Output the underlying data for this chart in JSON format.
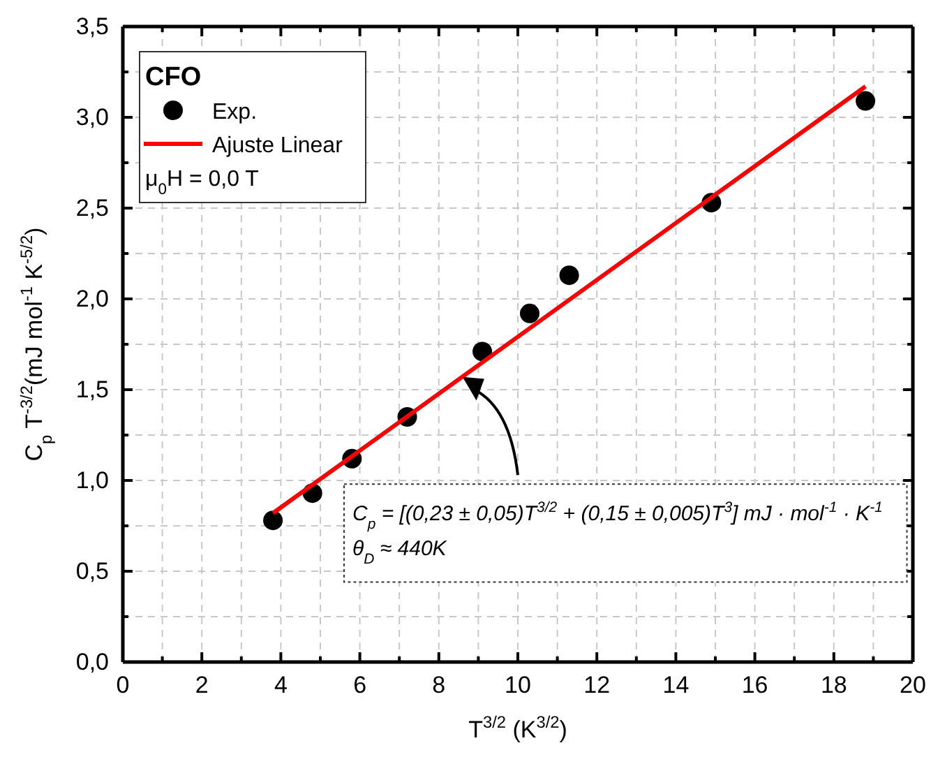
{
  "chart_data": {
    "type": "scatter",
    "xlabel": "T$^{3/2}$ (K$^{3/2}$)",
    "ylabel": "C$_{p}$ T$^{-3/2}$(mJ mol$^{-1}$ K$^{-5/2}$)",
    "legend_title": "CFO",
    "legend": "top left",
    "grid": true,
    "xlim": [
      0,
      20
    ],
    "ylim": [
      0,
      3.5
    ],
    "xticks": [
      0,
      {
        "value": 1,
        "label": null
      },
      2,
      {
        "value": 3,
        "label": null
      },
      4,
      {
        "value": 5,
        "label": null
      },
      6,
      {
        "value": 7,
        "label": null
      },
      8,
      {
        "value": 9,
        "label": null
      },
      10,
      {
        "value": 11,
        "label": null
      },
      12,
      {
        "value": 13,
        "label": null
      },
      14,
      {
        "value": 15,
        "label": null
      },
      16,
      {
        "value": 17,
        "label": null
      },
      18,
      {
        "value": 19,
        "label": null
      },
      20
    ],
    "yticks": [
      {
        "value": 0,
        "label": "0,0"
      },
      {
        "value": 0.25,
        "label": null
      },
      {
        "value": 0.5,
        "label": "0,5"
      },
      {
        "value": 0.75,
        "label": null
      },
      {
        "value": 1,
        "label": "1,0"
      },
      {
        "value": 1.25,
        "label": null
      },
      {
        "value": 1.5,
        "label": "1,5"
      },
      {
        "value": 1.75,
        "label": null
      },
      {
        "value": 2,
        "label": "2,0"
      },
      {
        "value": 2.25,
        "label": null
      },
      {
        "value": 2.5,
        "label": "2,5"
      },
      {
        "value": 2.75,
        "label": null
      },
      {
        "value": 3,
        "label": "3,0"
      },
      {
        "value": 3.25,
        "label": null
      },
      {
        "value": 3.5,
        "label": "3,5"
      }
    ],
    "series": [
      {
        "name": "Exp.",
        "marker": "circle",
        "color": "#000000",
        "x": [
          3.8,
          4.8,
          5.8,
          7.2,
          9.1,
          10.3,
          11.3,
          14.9,
          18.8
        ],
        "values": [
          0.78,
          0.93,
          1.12,
          1.35,
          1.71,
          1.92,
          2.13,
          2.53,
          3.09
        ]
      },
      {
        "name": "Ajuste Linear",
        "type": "line",
        "line_style": "solid",
        "color": "#ff0000",
        "x": [
          3.8,
          18.8
        ],
        "values": [
          0.82,
          3.17
        ]
      }
    ],
    "annotations": [
      "μ$_{0}$H = 0,0 T",
      "C$_{p}$ = [(0,23 ± 0,05)T$^{3/2}$ + (0,15 ± 0,005)T$^{3}$] mJ · mol$^{-1}$ · K$^{-1}$",
      "θ$_{D}$ ≈ 440K"
    ]
  }
}
